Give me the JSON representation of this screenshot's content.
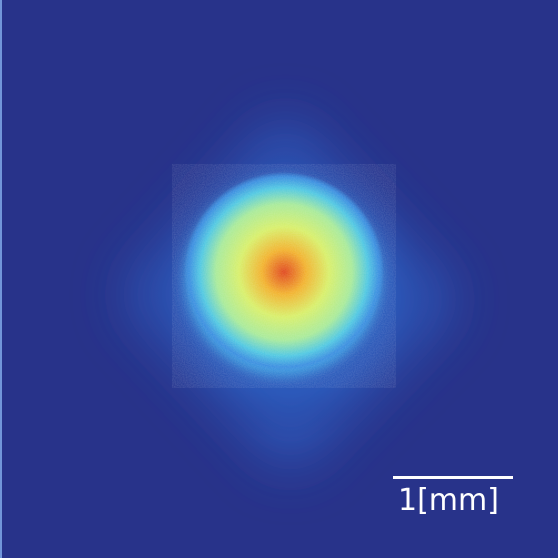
{
  "image": {
    "colormap": [
      "#28338a",
      "#2f6fd1",
      "#33b0e0",
      "#7fe0c8",
      "#d8ef6a",
      "#f2b22e",
      "#e0481e"
    ]
  },
  "scale_bar": {
    "label": "1[mm]",
    "color": "#ffffff"
  }
}
